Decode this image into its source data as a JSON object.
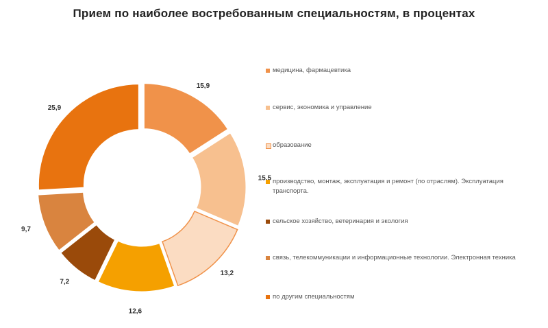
{
  "chart_data": {
    "type": "pie",
    "title": "Прием по наиболее востребованным  специальностям,  в процентах",
    "donut": true,
    "categories": [
      "медицина, фармацевтика",
      "сервис, экономика и управление",
      "образование",
      "производство, монтаж, эксплуатация и ремонт (по отраслям). Эксплуатация транспорта.",
      "сельское хозяйство, ветеринария и экология",
      "связь, телекоммуникации и информационные технологии. Электронная техника",
      "по другим специальностям"
    ],
    "values": [
      15.9,
      15.5,
      13.2,
      12.6,
      7.2,
      9.7,
      25.9
    ],
    "value_labels": [
      "15,9",
      "15,5",
      "13,2",
      "12,6",
      "7,2",
      "9,7",
      "25,9"
    ],
    "colors": [
      "#F0924A",
      "#F7C08F",
      "#FBDCC2",
      "#F5A000",
      "#9A4A0A",
      "#D9843F",
      "#E8730F"
    ],
    "legend_position": "right"
  }
}
